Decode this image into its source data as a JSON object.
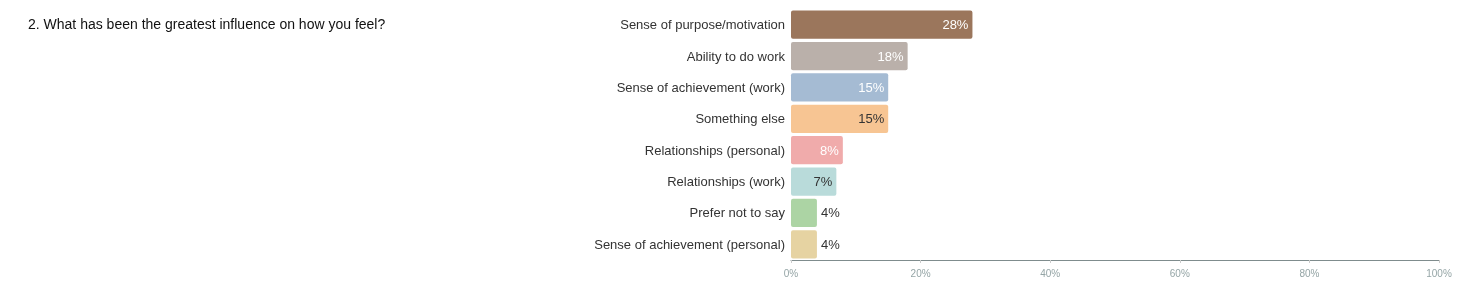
{
  "chart_data": {
    "type": "bar",
    "orientation": "horizontal",
    "title": "2. What has been the greatest influence on how you feel?",
    "categories": [
      "Sense of purpose/motivation",
      "Ability to do work",
      "Sense of achievement (work)",
      "Something else",
      "Relationships (personal)",
      "Relationships (work)",
      "Prefer not to say",
      "Sense of achievement (personal)"
    ],
    "values": [
      28,
      18,
      15,
      15,
      8,
      7,
      4,
      4
    ],
    "value_labels": [
      "28%",
      "18%",
      "15%",
      "15%",
      "8%",
      "7%",
      "4%",
      "4%"
    ],
    "colors": [
      "#9b765c",
      "#bab0aa",
      "#a5bbd3",
      "#f7c593",
      "#f0abab",
      "#b9dbda",
      "#acd4a4",
      "#e6d3a2"
    ],
    "xlim": [
      0,
      100
    ],
    "xticks": [
      {
        "value": 0,
        "label": "0%"
      },
      {
        "value": 20,
        "label": "20%"
      },
      {
        "value": 40,
        "label": "40%"
      },
      {
        "value": 60,
        "label": "60%"
      },
      {
        "value": 80,
        "label": "80%"
      },
      {
        "value": 100,
        "label": "100%"
      }
    ],
    "grid": false
  }
}
